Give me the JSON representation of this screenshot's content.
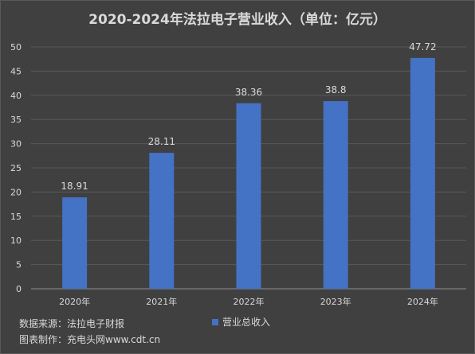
{
  "chart_data": {
    "type": "bar",
    "title": "2020-2024年法拉电子营业收入（单位：亿元）",
    "categories": [
      "2020年",
      "2021年",
      "2022年",
      "2023年",
      "2024年"
    ],
    "series": [
      {
        "name": "营业总收入",
        "values": [
          18.91,
          28.11,
          38.36,
          38.8,
          47.72
        ],
        "data_labels": [
          "18.91",
          "28.11",
          "38.36",
          "38.8",
          "47.72"
        ]
      }
    ],
    "ylim": [
      0,
      50
    ],
    "yticks": [
      0,
      5,
      10,
      15,
      20,
      25,
      30,
      35,
      40,
      45,
      50
    ],
    "grid": true,
    "legend_position": "bottom",
    "bar_color": "#4472c4"
  },
  "footer": {
    "source": "数据来源：法拉电子财报",
    "credit": "图表制作：充电头网www.cdt.cn"
  }
}
